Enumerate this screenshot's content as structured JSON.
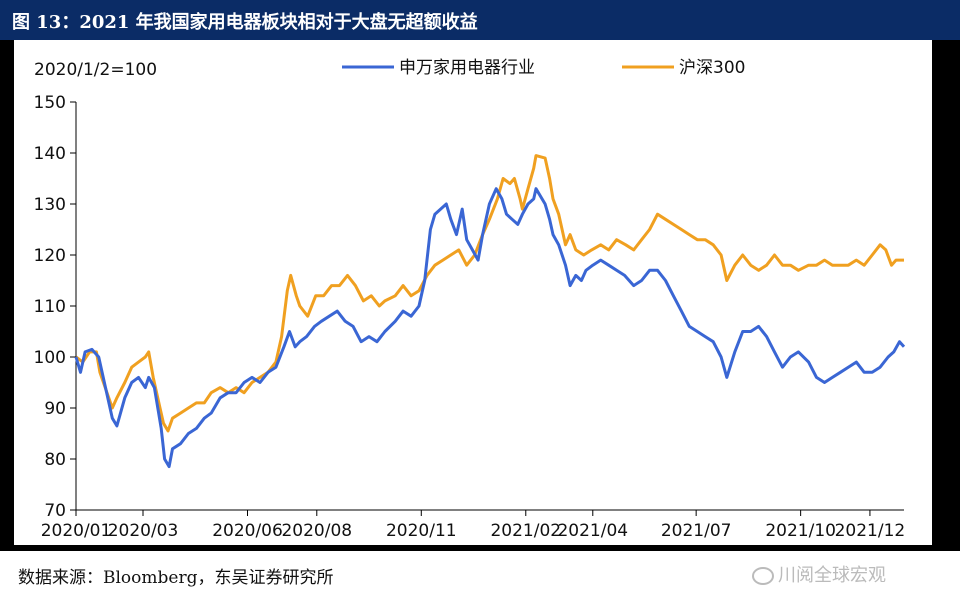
{
  "header": {
    "title": "图 13：2021 年我国家用电器板块相对于大盘无超额收益"
  },
  "source": {
    "text": "数据来源：Bloomberg，东吴证券研究所",
    "watermark": "川阅全球宏观",
    "watermark_icon": "wechat-icon"
  },
  "colors": {
    "header_bg": "#0b2c66",
    "appliance": "#3a66d4",
    "hs300": "#f0a020"
  },
  "chart_data": {
    "type": "line",
    "title": "",
    "index_note": "2020/1/2=100",
    "xlabel": "",
    "ylabel": "",
    "ylim": [
      70,
      150
    ],
    "yticks": [
      70,
      80,
      90,
      100,
      110,
      120,
      130,
      140,
      150
    ],
    "xlim": [
      "2020-01-02",
      "2021-12-31"
    ],
    "xticks": [
      {
        "date": "2020-01-02",
        "label": "2020/01"
      },
      {
        "date": "2020-03-01",
        "label": "2020/03"
      },
      {
        "date": "2020-06-01",
        "label": "2020/06"
      },
      {
        "date": "2020-08-01",
        "label": "2020/08"
      },
      {
        "date": "2020-11-01",
        "label": "2020/11"
      },
      {
        "date": "2021-02-01",
        "label": "2021/02"
      },
      {
        "date": "2021-04-01",
        "label": "2021/04"
      },
      {
        "date": "2021-07-01",
        "label": "2021/07"
      },
      {
        "date": "2021-10-01",
        "label": "2021/10"
      },
      {
        "date": "2021-12-01",
        "label": "2021/12"
      }
    ],
    "legend_position": "top",
    "grid": false,
    "series": [
      {
        "name": "申万家用电器行业",
        "color": "#3a66d4",
        "points": [
          [
            "2020-01-02",
            100
          ],
          [
            "2020-01-06",
            97
          ],
          [
            "2020-01-10",
            101
          ],
          [
            "2020-01-16",
            101.5
          ],
          [
            "2020-01-22",
            100
          ],
          [
            "2020-02-03",
            88
          ],
          [
            "2020-02-07",
            86.5
          ],
          [
            "2020-02-14",
            92
          ],
          [
            "2020-02-20",
            95
          ],
          [
            "2020-02-26",
            96
          ],
          [
            "2020-03-03",
            94
          ],
          [
            "2020-03-06",
            96
          ],
          [
            "2020-03-11",
            94
          ],
          [
            "2020-03-17",
            86
          ],
          [
            "2020-03-20",
            80
          ],
          [
            "2020-03-24",
            78.5
          ],
          [
            "2020-03-27",
            82
          ],
          [
            "2020-04-03",
            83
          ],
          [
            "2020-04-10",
            85
          ],
          [
            "2020-04-17",
            86
          ],
          [
            "2020-04-24",
            88
          ],
          [
            "2020-04-30",
            89
          ],
          [
            "2020-05-08",
            92
          ],
          [
            "2020-05-15",
            93
          ],
          [
            "2020-05-22",
            93
          ],
          [
            "2020-05-29",
            95
          ],
          [
            "2020-06-05",
            96
          ],
          [
            "2020-06-12",
            95
          ],
          [
            "2020-06-19",
            97
          ],
          [
            "2020-06-26",
            98
          ],
          [
            "2020-07-03",
            102
          ],
          [
            "2020-07-08",
            105
          ],
          [
            "2020-07-13",
            102
          ],
          [
            "2020-07-17",
            103
          ],
          [
            "2020-07-23",
            104
          ],
          [
            "2020-07-30",
            106
          ],
          [
            "2020-08-05",
            107
          ],
          [
            "2020-08-12",
            108
          ],
          [
            "2020-08-19",
            109
          ],
          [
            "2020-08-26",
            107
          ],
          [
            "2020-09-02",
            106
          ],
          [
            "2020-09-09",
            103
          ],
          [
            "2020-09-16",
            104
          ],
          [
            "2020-09-23",
            103
          ],
          [
            "2020-09-30",
            105
          ],
          [
            "2020-10-09",
            107
          ],
          [
            "2020-10-16",
            109
          ],
          [
            "2020-10-23",
            108
          ],
          [
            "2020-10-30",
            110
          ],
          [
            "2020-11-04",
            115
          ],
          [
            "2020-11-09",
            125
          ],
          [
            "2020-11-13",
            128
          ],
          [
            "2020-11-18",
            129
          ],
          [
            "2020-11-23",
            130
          ],
          [
            "2020-11-27",
            127
          ],
          [
            "2020-12-02",
            124
          ],
          [
            "2020-12-07",
            129
          ],
          [
            "2020-12-11",
            123
          ],
          [
            "2020-12-16",
            121
          ],
          [
            "2020-12-21",
            119
          ],
          [
            "2020-12-25",
            124
          ],
          [
            "2020-12-31",
            130
          ],
          [
            "2021-01-06",
            133
          ],
          [
            "2021-01-11",
            131
          ],
          [
            "2021-01-15",
            128
          ],
          [
            "2021-01-20",
            127
          ],
          [
            "2021-01-25",
            126
          ],
          [
            "2021-01-29",
            128
          ],
          [
            "2021-02-03",
            130
          ],
          [
            "2021-02-08",
            131
          ],
          [
            "2021-02-10",
            133
          ],
          [
            "2021-02-18",
            130
          ],
          [
            "2021-02-22",
            127
          ],
          [
            "2021-02-25",
            124
          ],
          [
            "2021-03-02",
            122
          ],
          [
            "2021-03-08",
            118
          ],
          [
            "2021-03-12",
            114
          ],
          [
            "2021-03-17",
            116
          ],
          [
            "2021-03-22",
            115
          ],
          [
            "2021-03-26",
            117
          ],
          [
            "2021-04-01",
            118
          ],
          [
            "2021-04-08",
            119
          ],
          [
            "2021-04-15",
            118
          ],
          [
            "2021-04-22",
            117
          ],
          [
            "2021-04-29",
            116
          ],
          [
            "2021-05-07",
            114
          ],
          [
            "2021-05-14",
            115
          ],
          [
            "2021-05-21",
            117
          ],
          [
            "2021-05-28",
            117
          ],
          [
            "2021-06-04",
            115
          ],
          [
            "2021-06-11",
            112
          ],
          [
            "2021-06-18",
            109
          ],
          [
            "2021-06-25",
            106
          ],
          [
            "2021-07-02",
            105
          ],
          [
            "2021-07-09",
            104
          ],
          [
            "2021-07-16",
            103
          ],
          [
            "2021-07-23",
            100
          ],
          [
            "2021-07-28",
            96
          ],
          [
            "2021-08-04",
            101
          ],
          [
            "2021-08-11",
            105
          ],
          [
            "2021-08-18",
            105
          ],
          [
            "2021-08-25",
            106
          ],
          [
            "2021-09-01",
            104
          ],
          [
            "2021-09-08",
            101
          ],
          [
            "2021-09-15",
            98
          ],
          [
            "2021-09-22",
            100
          ],
          [
            "2021-09-29",
            101
          ],
          [
            "2021-10-08",
            99
          ],
          [
            "2021-10-15",
            96
          ],
          [
            "2021-10-22",
            95
          ],
          [
            "2021-10-29",
            96
          ],
          [
            "2021-11-05",
            97
          ],
          [
            "2021-11-12",
            98
          ],
          [
            "2021-11-19",
            99
          ],
          [
            "2021-11-26",
            97
          ],
          [
            "2021-12-03",
            97
          ],
          [
            "2021-12-10",
            98
          ],
          [
            "2021-12-17",
            100
          ],
          [
            "2021-12-22",
            101
          ],
          [
            "2021-12-27",
            103
          ],
          [
            "2021-12-31",
            102
          ]
        ]
      },
      {
        "name": "沪深300",
        "color": "#f0a020",
        "points": [
          [
            "2020-01-02",
            100
          ],
          [
            "2020-01-08",
            99
          ],
          [
            "2020-01-14",
            101
          ],
          [
            "2020-01-20",
            101
          ],
          [
            "2020-01-23",
            97
          ],
          [
            "2020-02-03",
            90
          ],
          [
            "2020-02-07",
            92
          ],
          [
            "2020-02-14",
            95
          ],
          [
            "2020-02-20",
            98
          ],
          [
            "2020-02-26",
            99
          ],
          [
            "2020-03-03",
            100
          ],
          [
            "2020-03-06",
            101
          ],
          [
            "2020-03-10",
            96
          ],
          [
            "2020-03-16",
            90
          ],
          [
            "2020-03-19",
            87
          ],
          [
            "2020-03-23",
            85.5
          ],
          [
            "2020-03-27",
            88
          ],
          [
            "2020-04-03",
            89
          ],
          [
            "2020-04-10",
            90
          ],
          [
            "2020-04-17",
            91
          ],
          [
            "2020-04-24",
            91
          ],
          [
            "2020-04-30",
            93
          ],
          [
            "2020-05-08",
            94
          ],
          [
            "2020-05-15",
            93
          ],
          [
            "2020-05-22",
            94
          ],
          [
            "2020-05-29",
            93
          ],
          [
            "2020-06-05",
            95
          ],
          [
            "2020-06-12",
            96
          ],
          [
            "2020-06-19",
            97
          ],
          [
            "2020-06-26",
            99
          ],
          [
            "2020-07-01",
            104
          ],
          [
            "2020-07-06",
            113
          ],
          [
            "2020-07-09",
            116
          ],
          [
            "2020-07-14",
            112
          ],
          [
            "2020-07-17",
            110
          ],
          [
            "2020-07-24",
            108
          ],
          [
            "2020-07-31",
            112
          ],
          [
            "2020-08-07",
            112
          ],
          [
            "2020-08-14",
            114
          ],
          [
            "2020-08-21",
            114
          ],
          [
            "2020-08-28",
            116
          ],
          [
            "2020-09-04",
            114
          ],
          [
            "2020-09-11",
            111
          ],
          [
            "2020-09-18",
            112
          ],
          [
            "2020-09-25",
            110
          ],
          [
            "2020-09-30",
            111
          ],
          [
            "2020-10-09",
            112
          ],
          [
            "2020-10-16",
            114
          ],
          [
            "2020-10-23",
            112
          ],
          [
            "2020-10-30",
            113
          ],
          [
            "2020-11-06",
            116
          ],
          [
            "2020-11-13",
            118
          ],
          [
            "2020-11-20",
            119
          ],
          [
            "2020-11-27",
            120
          ],
          [
            "2020-12-04",
            121
          ],
          [
            "2020-12-11",
            118
          ],
          [
            "2020-12-18",
            120
          ],
          [
            "2020-12-25",
            124
          ],
          [
            "2020-12-31",
            127
          ],
          [
            "2021-01-07",
            131
          ],
          [
            "2021-01-12",
            135
          ],
          [
            "2021-01-18",
            134
          ],
          [
            "2021-01-22",
            135
          ],
          [
            "2021-01-27",
            131
          ],
          [
            "2021-01-29",
            129
          ],
          [
            "2021-02-03",
            133
          ],
          [
            "2021-02-08",
            137
          ],
          [
            "2021-02-10",
            139.5
          ],
          [
            "2021-02-18",
            139
          ],
          [
            "2021-02-22",
            135
          ],
          [
            "2021-02-25",
            131
          ],
          [
            "2021-03-02",
            128
          ],
          [
            "2021-03-08",
            122
          ],
          [
            "2021-03-12",
            124
          ],
          [
            "2021-03-17",
            121
          ],
          [
            "2021-03-24",
            120
          ],
          [
            "2021-03-31",
            121
          ],
          [
            "2021-04-08",
            122
          ],
          [
            "2021-04-15",
            121
          ],
          [
            "2021-04-22",
            123
          ],
          [
            "2021-04-30",
            122
          ],
          [
            "2021-05-07",
            121
          ],
          [
            "2021-05-14",
            123
          ],
          [
            "2021-05-21",
            125
          ],
          [
            "2021-05-28",
            128
          ],
          [
            "2021-06-04",
            127
          ],
          [
            "2021-06-11",
            126
          ],
          [
            "2021-06-18",
            125
          ],
          [
            "2021-06-25",
            124
          ],
          [
            "2021-07-02",
            123
          ],
          [
            "2021-07-09",
            123
          ],
          [
            "2021-07-16",
            122
          ],
          [
            "2021-07-23",
            120
          ],
          [
            "2021-07-28",
            115
          ],
          [
            "2021-08-04",
            118
          ],
          [
            "2021-08-11",
            120
          ],
          [
            "2021-08-18",
            118
          ],
          [
            "2021-08-25",
            117
          ],
          [
            "2021-09-01",
            118
          ],
          [
            "2021-09-08",
            120
          ],
          [
            "2021-09-15",
            118
          ],
          [
            "2021-09-22",
            118
          ],
          [
            "2021-09-29",
            117
          ],
          [
            "2021-10-08",
            118
          ],
          [
            "2021-10-15",
            118
          ],
          [
            "2021-10-22",
            119
          ],
          [
            "2021-10-29",
            118
          ],
          [
            "2021-11-05",
            118
          ],
          [
            "2021-11-12",
            118
          ],
          [
            "2021-11-19",
            119
          ],
          [
            "2021-11-26",
            118
          ],
          [
            "2021-12-03",
            120
          ],
          [
            "2021-12-10",
            122
          ],
          [
            "2021-12-15",
            121
          ],
          [
            "2021-12-20",
            118
          ],
          [
            "2021-12-24",
            119
          ],
          [
            "2021-12-31",
            119
          ]
        ]
      }
    ]
  }
}
